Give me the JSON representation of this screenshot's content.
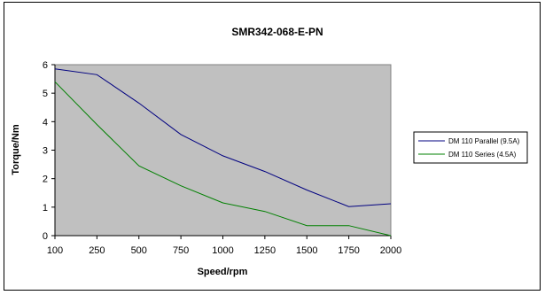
{
  "chart_data": {
    "type": "line",
    "title": "SMR342-068-E-PN",
    "xlabel": "Speed/rpm",
    "ylabel": "Torque/Nm",
    "categories": [
      "100",
      "250",
      "500",
      "750",
      "1000",
      "1250",
      "1500",
      "1750",
      "2000"
    ],
    "ylim": [
      0,
      6
    ],
    "yticks": [
      "0",
      "1",
      "2",
      "3",
      "4",
      "5",
      "6"
    ],
    "grid": false,
    "plot_background": "#c0c0c0",
    "legend_position": "right",
    "series": [
      {
        "name": "DM 110 Parallel (9.5A)",
        "color": "#000080",
        "values": [
          5.85,
          5.65,
          4.65,
          3.55,
          2.8,
          2.25,
          1.6,
          1.02,
          1.12
        ]
      },
      {
        "name": "DM 110 Series (4.5A)",
        "color": "#008000",
        "values": [
          5.4,
          3.9,
          2.45,
          1.75,
          1.15,
          0.85,
          0.35,
          0.35,
          0.0
        ]
      }
    ]
  }
}
